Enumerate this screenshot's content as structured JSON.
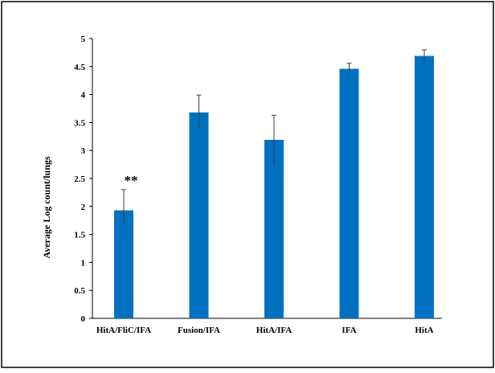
{
  "chart_data": {
    "type": "bar",
    "title": "",
    "xlabel": "",
    "ylabel": "Average Log count/lungs",
    "categories": [
      "HitA/FliC/IFA",
      "Fusion/IFA",
      "HitA/IFA",
      "IFA",
      "HitA"
    ],
    "values": [
      1.93,
      3.68,
      3.19,
      4.46,
      4.69
    ],
    "error_upper": [
      0.37,
      0.31,
      0.44,
      0.1,
      0.11
    ],
    "error_lower": [
      0.27,
      0.28,
      0.45,
      0.1,
      0.11
    ],
    "ylim": [
      0,
      5
    ],
    "yticks": [
      "0",
      "0.5",
      "1",
      "1.5",
      "2",
      "2.5",
      "3",
      "3.5",
      "4",
      "4.5",
      "5"
    ],
    "grid": false,
    "legend": "none",
    "bar_color": "#0070C0",
    "annotations": [
      {
        "category": "HitA/FliC/IFA",
        "text": "**"
      }
    ]
  }
}
